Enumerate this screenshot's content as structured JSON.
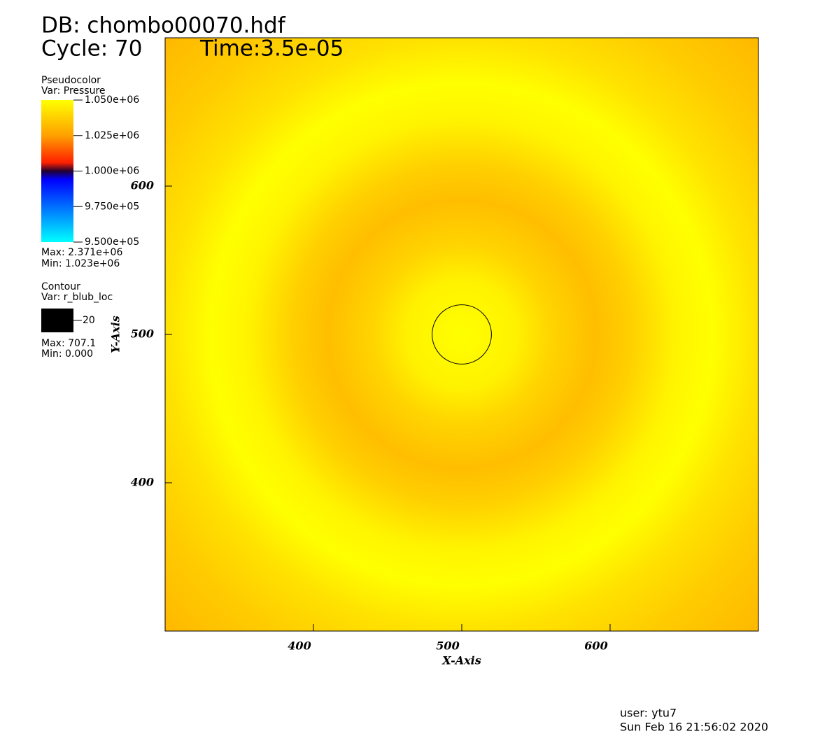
{
  "chart_data": {
    "type": "pseudocolor",
    "db": "DB: chombo00070.hdf",
    "cycle": "Cycle: 70",
    "time": "Time:3.5e-05",
    "x_label": "X-Axis",
    "y_label": "Y-Axis",
    "xlim": [
      300,
      700
    ],
    "ylim": [
      300,
      700
    ],
    "xticks": [
      400,
      500,
      600
    ],
    "yticks": [
      400,
      500,
      600
    ],
    "pseudocolor_legend": {
      "title": "Pseudocolor",
      "var": "Var: Pressure",
      "range": [
        950000,
        1050000
      ],
      "ticks": [
        {
          "value": 1050000,
          "label": "1.050e+06"
        },
        {
          "value": 1025000,
          "label": "1.025e+06"
        },
        {
          "value": 1000000,
          "label": "1.000e+06"
        },
        {
          "value": 975000,
          "label": "9.750e+05"
        },
        {
          "value": 950000,
          "label": "9.500e+05"
        }
      ],
      "max": "Max: 2.371e+06",
      "min": "Min:  1.023e+06"
    },
    "contour_legend": {
      "title": "Contour",
      "var": "Var: r_blub_loc",
      "levels": [
        20
      ],
      "color": "#000000",
      "max": "Max: 707.1",
      "min": "Min: 0.000"
    },
    "contour": {
      "center": [
        500,
        500
      ],
      "level": 20,
      "color": "#000000"
    },
    "user": "user: ytu7",
    "date": "Sun Feb 16 21:56:02 2020"
  }
}
